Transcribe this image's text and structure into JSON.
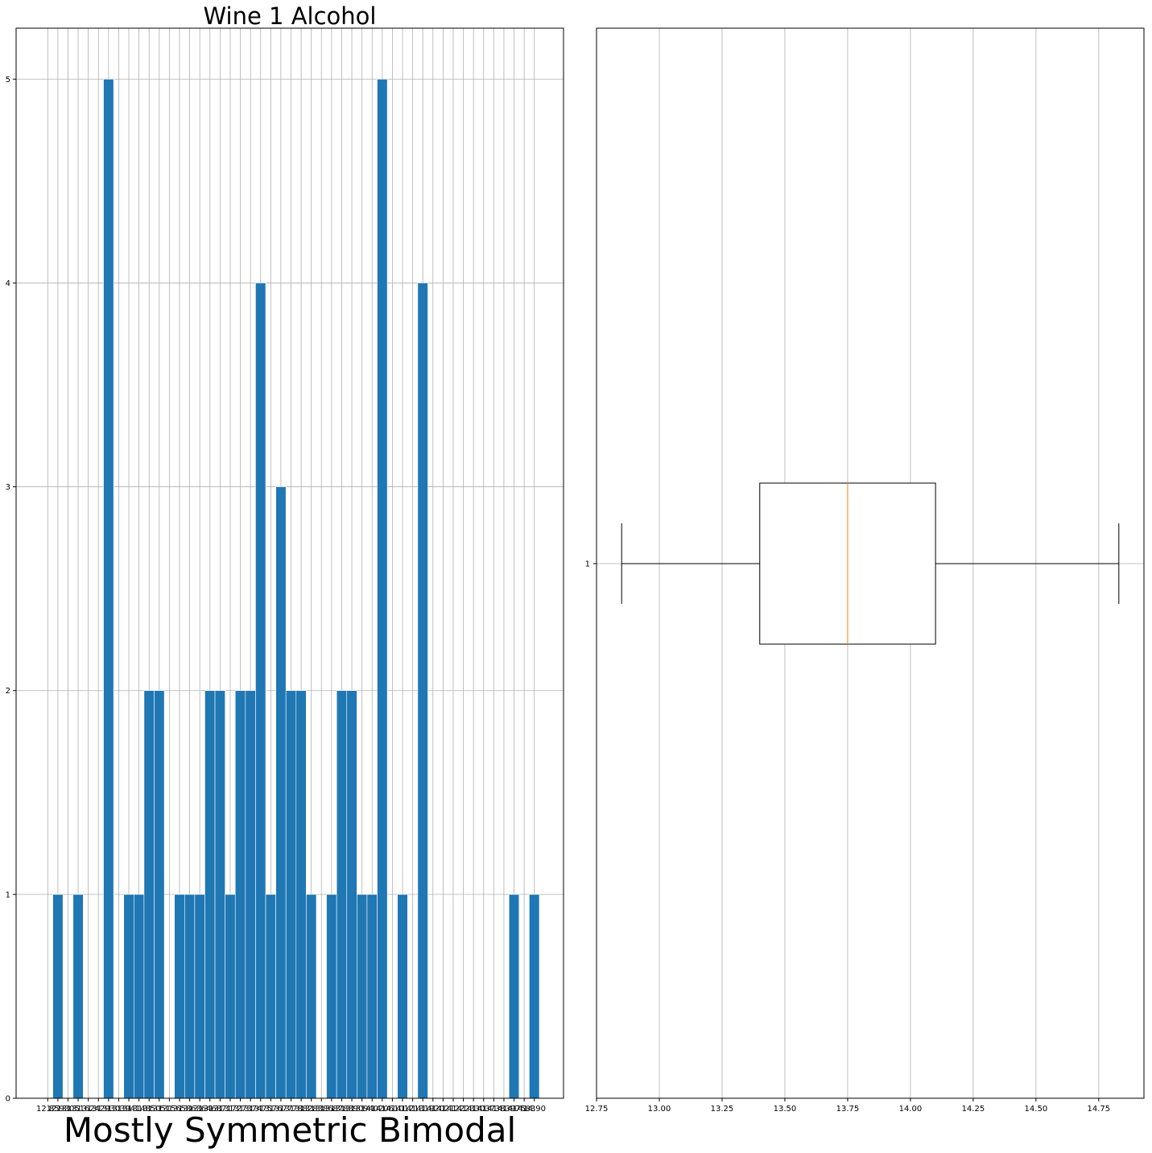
{
  "chart_data": [
    {
      "type": "bar",
      "title": "Wine 1 Alcohol",
      "xlabel": "Mostly Symmetric Bimodal",
      "ylabel": "",
      "ylim": [
        0,
        5.25
      ],
      "yticks": [
        "0",
        "1",
        "2",
        "3",
        "4",
        "5"
      ],
      "grid": true,
      "color": "#1f77b4",
      "x_tick_labels": [
        "12.85",
        "12.93",
        "13.05",
        "13.16",
        "13.24",
        "13.29",
        "13.30",
        "13.39",
        "13.41",
        "13.48",
        "13.50",
        "13.51",
        "13.56",
        "13.58",
        "13.63",
        "13.64",
        "13.68",
        "13.71",
        "13.72",
        "13.73",
        "13.74",
        "13.75",
        "13.76",
        "13.77",
        "13.78",
        "13.82",
        "13.83",
        "13.86",
        "13.87",
        "13.88",
        "13.90",
        "13.94",
        "14.02",
        "14.06",
        "14.10",
        "14.12",
        "14.13",
        "14.19",
        "14.20",
        "14.21",
        "14.22",
        "14.23",
        "14.30",
        "14.37",
        "14.38",
        "14.39",
        "14.75",
        "14.83",
        "14.90"
      ],
      "last_tick_visible": "790",
      "categories": [
        "12.85",
        "12.93",
        "13.05",
        "13.16",
        "13.24",
        "13.29",
        "13.30",
        "13.39",
        "13.41",
        "13.48",
        "13.50",
        "13.51",
        "13.56",
        "13.58",
        "13.63",
        "13.64",
        "13.68",
        "13.71",
        "13.72",
        "13.73",
        "13.74",
        "13.75",
        "13.76",
        "13.77",
        "13.78",
        "13.82",
        "13.83",
        "13.86",
        "13.87",
        "13.88",
        "13.90",
        "13.94",
        "14.02",
        "14.06",
        "14.10",
        "14.12",
        "14.13",
        "14.19",
        "14.20",
        "14.21",
        "14.22",
        "14.23",
        "14.30",
        "14.37",
        "14.38",
        "14.39",
        "14.75",
        "14.83",
        "14.90"
      ],
      "values": [
        0,
        1,
        0,
        1,
        0,
        0,
        5,
        0,
        1,
        1,
        2,
        2,
        0,
        1,
        1,
        1,
        2,
        2,
        1,
        2,
        2,
        4,
        1,
        3,
        2,
        2,
        1,
        0,
        1,
        2,
        2,
        1,
        1,
        5,
        0,
        1,
        0,
        4,
        0,
        0,
        0,
        0,
        0,
        0,
        0,
        0,
        1,
        0,
        1
      ]
    },
    {
      "type": "box",
      "orientation": "horizontal",
      "xlim": [
        12.75,
        14.93
      ],
      "xticks": [
        "12.75",
        "13.00",
        "13.25",
        "13.50",
        "13.75",
        "14.00",
        "14.25",
        "14.50",
        "14.75"
      ],
      "ytick": "1",
      "grid": true,
      "whisker_low": 12.85,
      "q1": 13.4,
      "median": 13.75,
      "q3": 14.1,
      "whisker_high": 14.83,
      "median_color": "#ff7f0e"
    }
  ]
}
